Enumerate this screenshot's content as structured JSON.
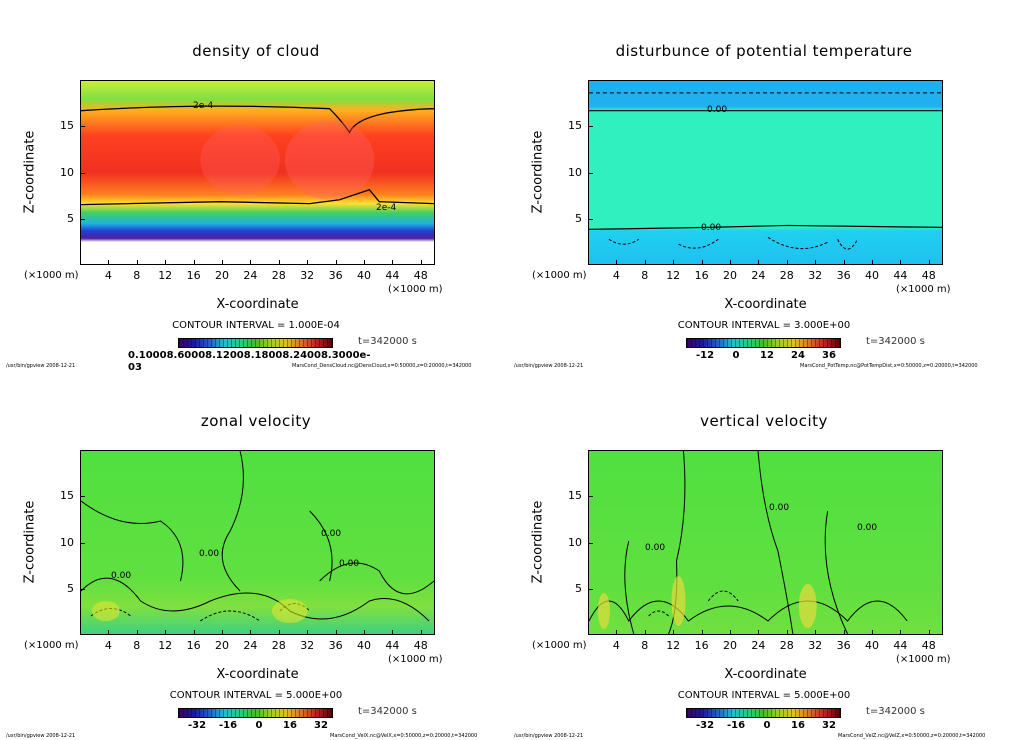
{
  "axes": {
    "ylabel": "Z-coordinate",
    "xlabel": "X-coordinate",
    "xunit": "(×1000 m)",
    "xticks": [
      4,
      8,
      12,
      16,
      20,
      24,
      28,
      32,
      36,
      40,
      44,
      48
    ],
    "yticks": [
      5,
      10,
      15
    ],
    "xlim": [
      0,
      50
    ],
    "ylim": [
      0,
      20
    ]
  },
  "time_label": "t=342000 s",
  "footer_left": "/usr/bin/gpview   2008-12-21",
  "chart_data": [
    {
      "type": "heatmap",
      "title": "density of cloud",
      "contour_interval": "CONTOUR INTERVAL = 1.000E-04",
      "colorbar_labels": "0.10008.60008.12008.18008.24008.3000e-03",
      "contour_labels": [
        "2e-4",
        "2e-4"
      ],
      "footer_right": "MarsCond_DensCloud.nc@DensCloud,x=0:50000,z=0:20000,t=342000"
    },
    {
      "type": "heatmap",
      "title": "disturbunce of potential temperature",
      "contour_interval": "CONTOUR INTERVAL = 3.000E+00",
      "colorbar_labels": [
        "-12",
        "0",
        "12",
        "24",
        "36"
      ],
      "contour_labels": [
        "0.00",
        "0.00"
      ],
      "footer_right": "MarsCond_PotTemp.nc@PotTempDist,x=0:50000,z=0:20000,t=342000"
    },
    {
      "type": "heatmap",
      "title": "zonal velocity",
      "contour_interval": "CONTOUR INTERVAL = 5.000E+00",
      "colorbar_labels": [
        "-32",
        "-16",
        "0",
        "16",
        "32"
      ],
      "contour_labels": [
        "0.00",
        "0.00",
        "0.00",
        "0.00"
      ],
      "footer_right": "MarsCond_VelX.nc@VelX,x=0:50000,z=0:20000,t=342000"
    },
    {
      "type": "heatmap",
      "title": "vertical velocity",
      "contour_interval": "CONTOUR INTERVAL = 5.000E+00",
      "colorbar_labels": [
        "-32",
        "-16",
        "0",
        "16",
        "32"
      ],
      "contour_labels": [
        "0.00",
        "0.00",
        "0.00"
      ],
      "footer_right": "MarsCond_VelZ.nc@VelZ,x=0:50000,z=0:20000,t=342000"
    }
  ]
}
